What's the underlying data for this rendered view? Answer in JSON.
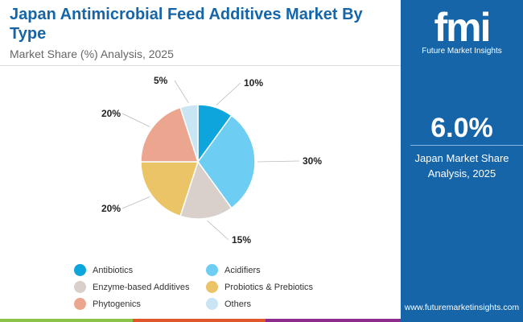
{
  "header": {
    "title": "Japan Antimicrobial Feed Additives Market By Type",
    "subtitle": "Market Share (%) Analysis, 2025"
  },
  "panel": {
    "logo": "fmi",
    "logo_text": "Future Market Insights",
    "value": "6.0%",
    "label": "Japan Market Share Analysis, 2025",
    "url": "www.futuremarketinsights.com",
    "bg": "#1665a9"
  },
  "chart_data": {
    "type": "pie",
    "title": "Japan Antimicrobial Feed Additives Market By Type",
    "subtitle": "Market Share (%) Analysis, 2025",
    "legend": "bottom",
    "categories": [
      "Antibiotics",
      "Acidifiers",
      "Enzyme-based Additives",
      "Probiotics & Prebiotics",
      "Phytogenics",
      "Others"
    ],
    "values": [
      10,
      30,
      15,
      20,
      20,
      5
    ],
    "labels": [
      "10%",
      "30%",
      "15%",
      "20%",
      "20%",
      "5%"
    ],
    "colors": [
      "#0ea5dc",
      "#6dcdf2",
      "#d9cfcb",
      "#ebc468",
      "#eca58f",
      "#c9e4f3"
    ]
  }
}
